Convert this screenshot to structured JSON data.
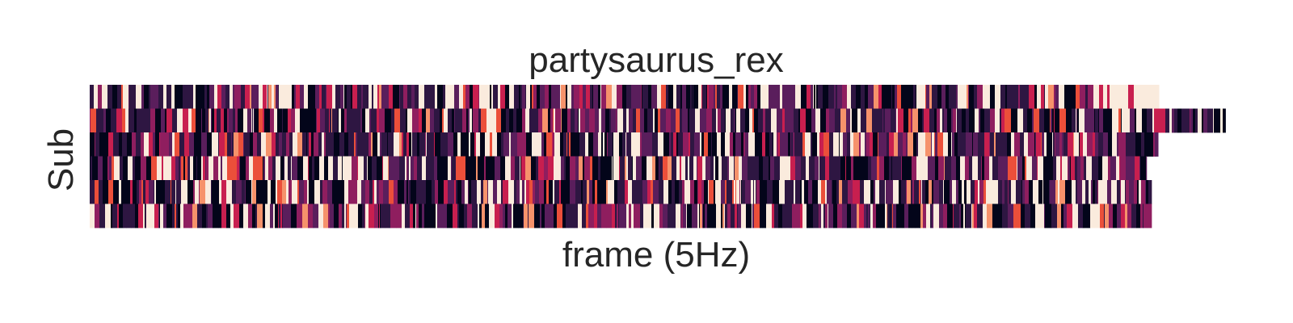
{
  "chart_data": {
    "type": "heatmap",
    "title": "partysaurus_rex",
    "xlabel": "frame (5Hz)",
    "ylabel": "Sub",
    "n_subjects": 6,
    "rows": [
      {
        "frames": 1301,
        "tail_frames": 80
      },
      {
        "frames": 1382,
        "tail_frames": 0
      },
      {
        "frames": 1300,
        "tail_frames": 0
      },
      {
        "frames": 1286,
        "tail_frames": 0
      },
      {
        "frames": 1292,
        "tail_frames": 0
      },
      {
        "frames": 1292,
        "tail_frames": 0
      }
    ],
    "grid": false,
    "colorbar": false,
    "colormap": [
      "#03051a",
      "#2e1642",
      "#5a1e5c",
      "#8f1e5f",
      "#c81f4f",
      "#eb4f3a",
      "#f6926b",
      "#faebdd"
    ]
  }
}
